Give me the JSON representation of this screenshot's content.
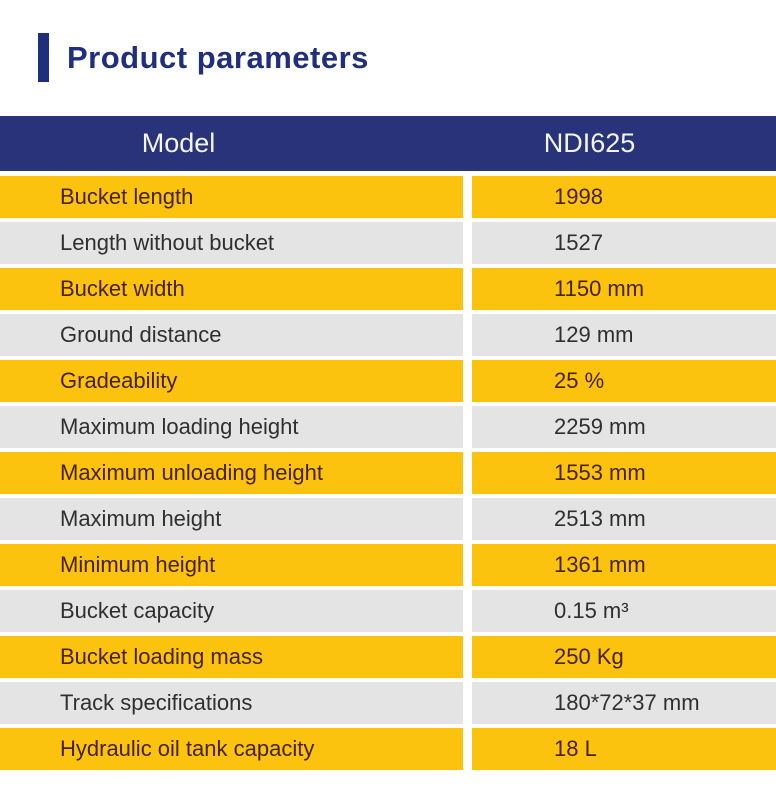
{
  "title": {
    "text": "Product parameters"
  },
  "table": {
    "header": {
      "param_col": "Model",
      "value_col": "NDI625"
    },
    "rows": [
      {
        "label": "Bucket length",
        "value": "1998"
      },
      {
        "label": "Length without bucket",
        "value": "1527"
      },
      {
        "label": "Bucket width",
        "value": "1150 mm"
      },
      {
        "label": "Ground distance",
        "value": "129 mm"
      },
      {
        "label": "Gradeability",
        "value": "25 %"
      },
      {
        "label": "Maximum loading height",
        "value": "2259 mm"
      },
      {
        "label": "Maximum unloading height",
        "value": "1553 mm"
      },
      {
        "label": "Maximum height",
        "value": "2513 mm"
      },
      {
        "label": "Minimum height",
        "value": "1361 mm"
      },
      {
        "label": "Bucket capacity",
        "value": "0.15 m³"
      },
      {
        "label": "Bucket loading mass",
        "value": "250 Kg"
      },
      {
        "label": "Track specifications",
        "value": "180*72*37 mm"
      },
      {
        "label": "Hydraulic oil tank capacity",
        "value": "18 L"
      }
    ]
  },
  "colors": {
    "accent_navy": "#1f2e7d",
    "header_navy": "#283379",
    "row_yellow": "#fcc30e",
    "row_gray": "#e4e4e4",
    "yellow_row_text": "#46220c",
    "gray_row_text": "#2f2f2f",
    "header_text": "#f4f5f7"
  }
}
